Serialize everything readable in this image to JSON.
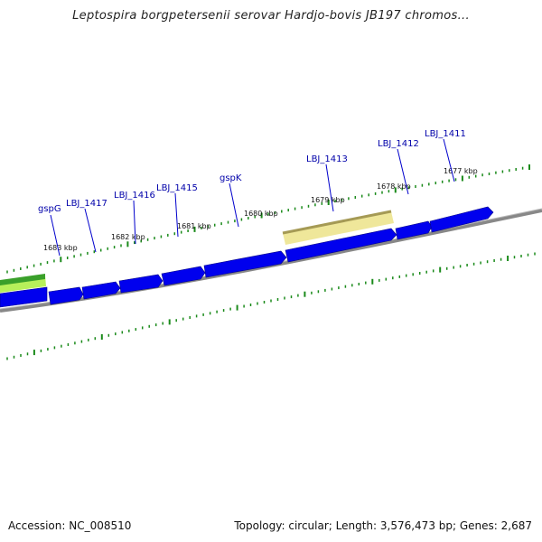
{
  "title": "Leptospira borgpetersenii serovar Hardjo-bovis JB197 chromos...",
  "footer": {
    "accession": "Accession: NC_008510",
    "summary": "Topology: circular; Length: 3,576,473 bp; Genes: 2,687"
  },
  "colors": {
    "gene": "#0000ee",
    "backbone": "#888888",
    "tick": "#1a8a1a",
    "label": "#0000aa",
    "highlight": "#efe79a",
    "green_track": "#3aa02a"
  },
  "scale_labels": [
    "1683 kbp",
    "1682 kbp",
    "1681 kbp",
    "1680 kbp",
    "1679 kbp",
    "1678 kbp",
    "1677 kbp"
  ],
  "gene_labels": [
    "gspG",
    "LBJ_1417",
    "LBJ_1416",
    "LBJ_1415",
    "gspK",
    "LBJ_1413",
    "LBJ_1412",
    "LBJ_1411"
  ]
}
